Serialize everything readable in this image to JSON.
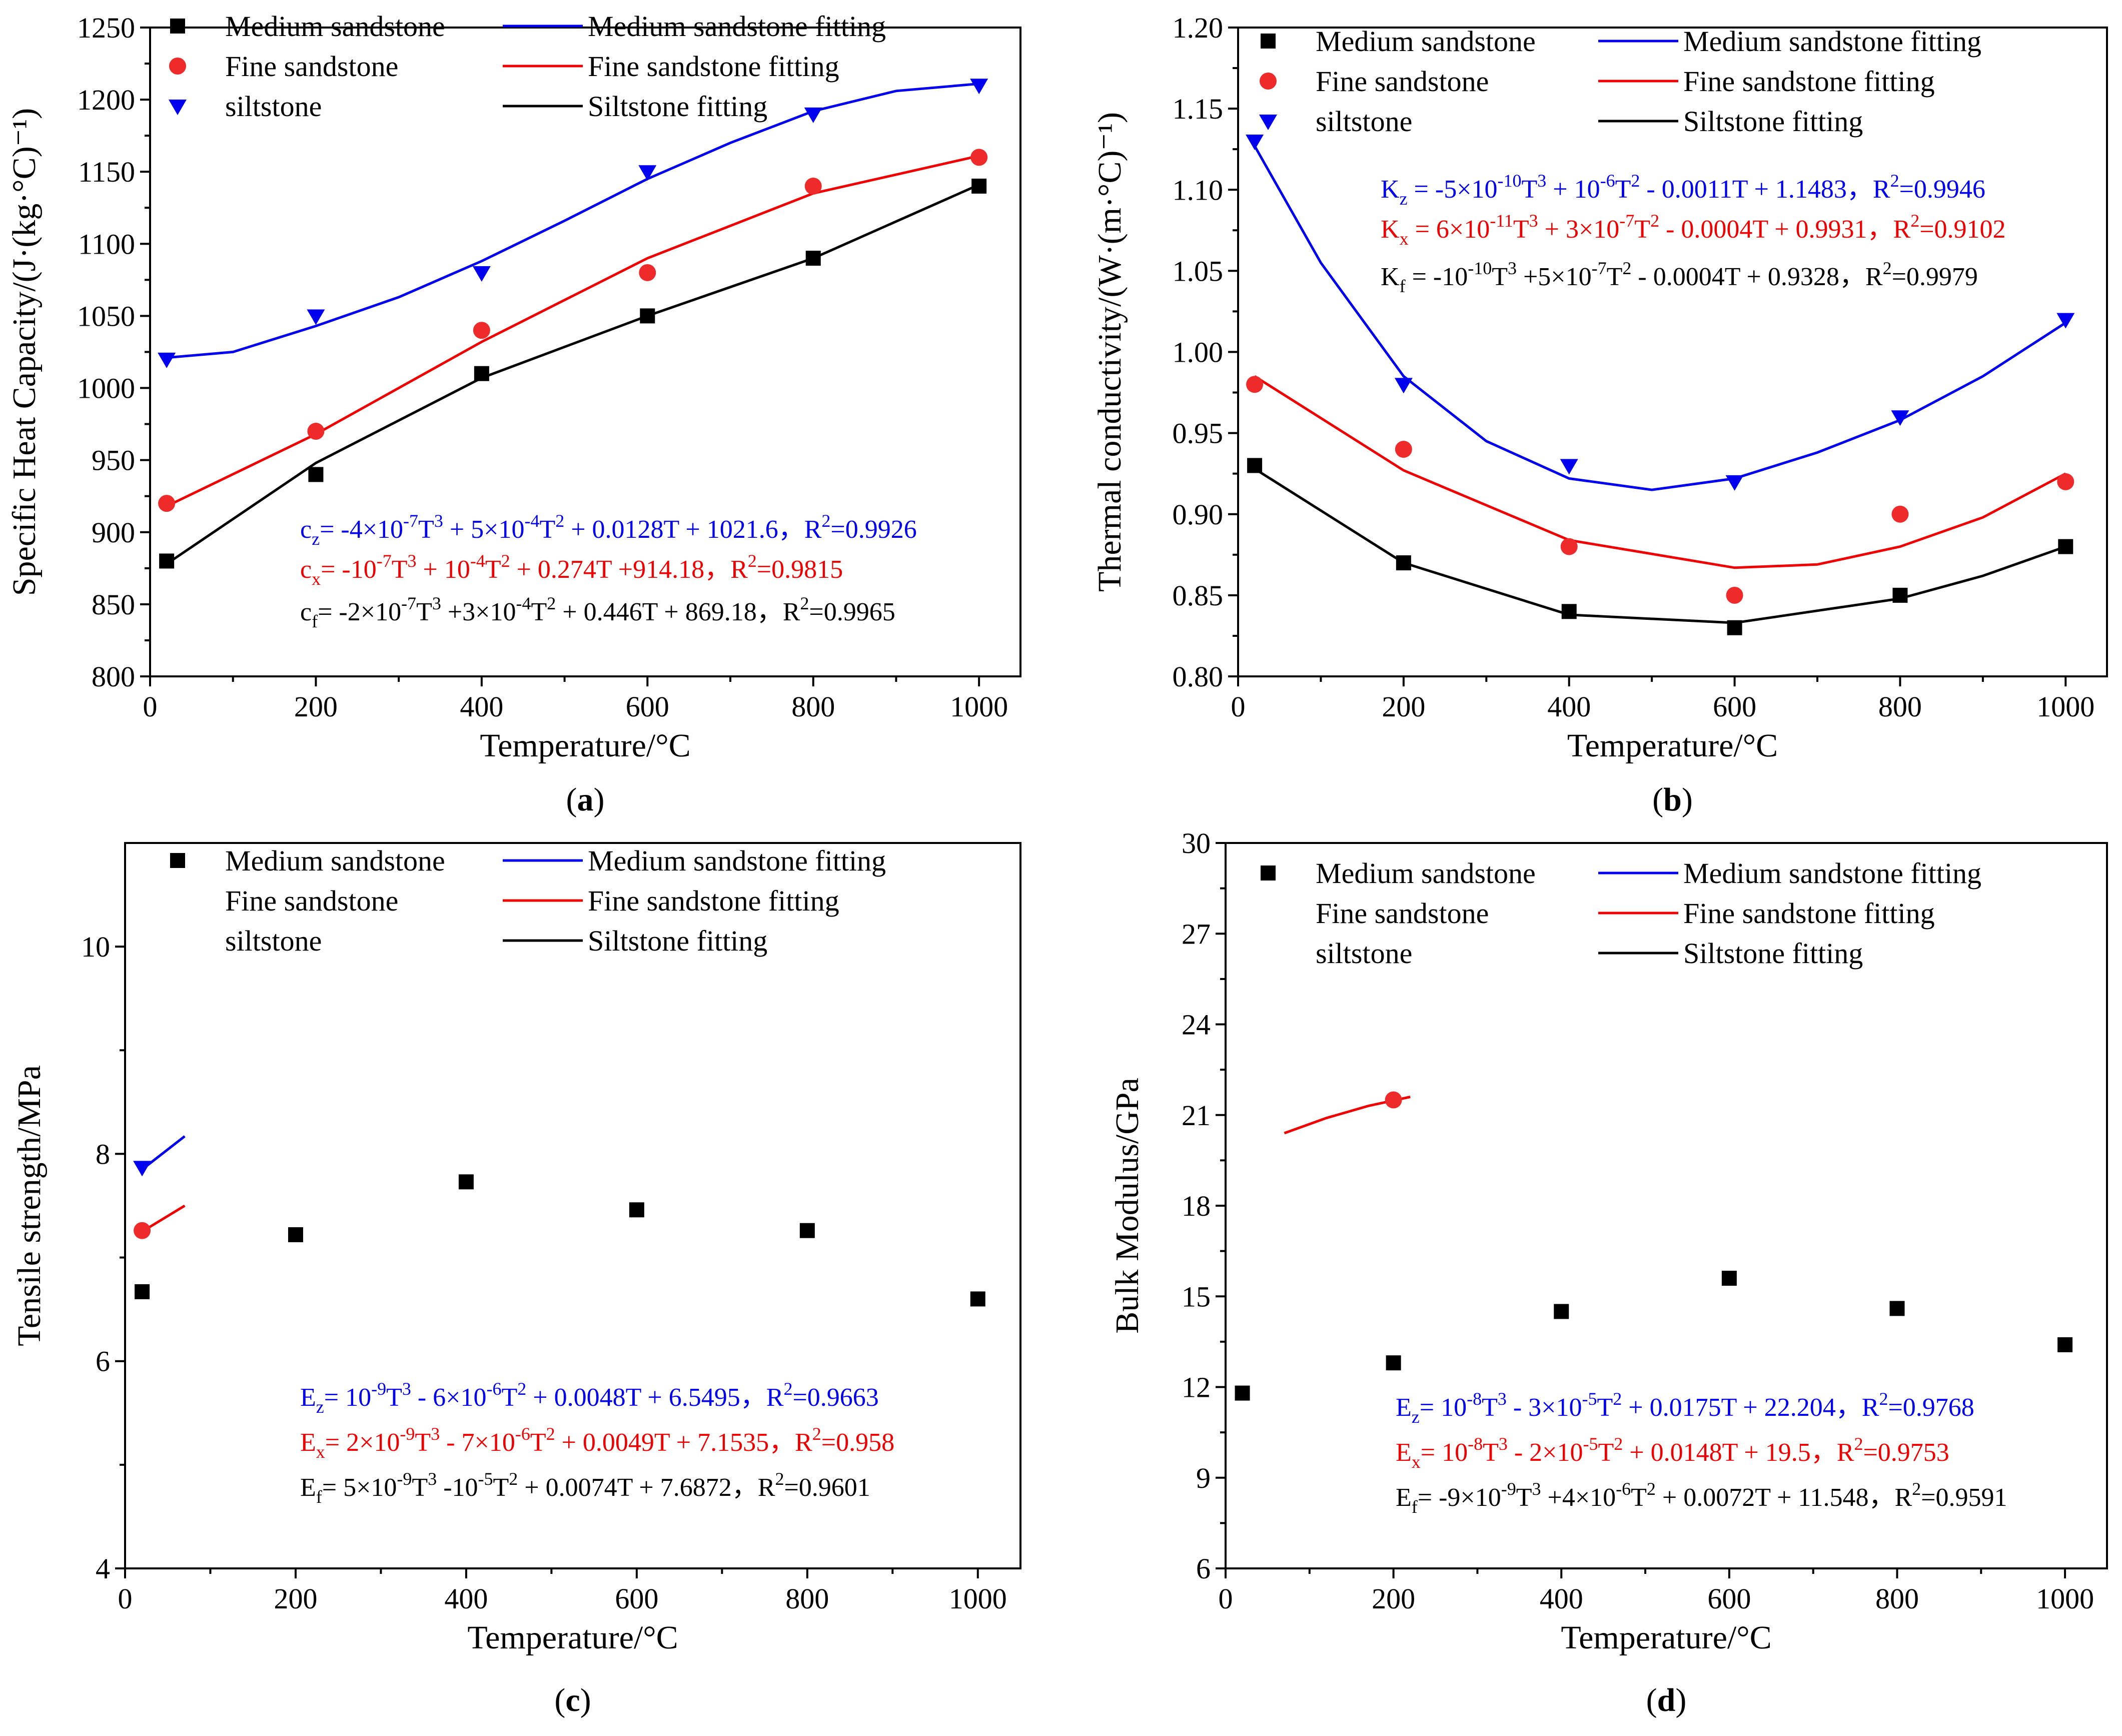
{
  "colors": {
    "medium": "#000000",
    "fine": "#ee2a2a",
    "silt": "#0000ee",
    "blue_fit": "#0000ee",
    "red_fit": "#ee0000",
    "black_fit": "#000000"
  },
  "legend": {
    "medium": "Medium sandstone",
    "fine": "Fine sandstone",
    "silt": "siltstone",
    "medium_fit": "Medium sandstone fitting",
    "fine_fit": "Fine sandstone fitting",
    "silt_fit": "Siltstone fitting"
  },
  "chart_data": [
    {
      "id": "a",
      "type": "scatter",
      "caption_letter": "a",
      "xlabel": "Temperature/°C",
      "ylabel": "Specific Heat Capacity/(J·(kg·°C)⁻¹)",
      "xlim": [
        0,
        1050
      ],
      "ylim": [
        800,
        1250
      ],
      "xticks": [
        0,
        200,
        400,
        600,
        800,
        1000
      ],
      "yticks": [
        800,
        850,
        900,
        950,
        1000,
        1050,
        1100,
        1150,
        1200,
        1250
      ],
      "x": [
        20,
        200,
        400,
        600,
        800,
        1000
      ],
      "series": [
        {
          "key": "medium",
          "name": "Medium sandstone",
          "marker": "square",
          "values": [
            880,
            940,
            1010,
            1050,
            1090,
            1140
          ]
        },
        {
          "key": "fine",
          "name": "Fine sandstone",
          "marker": "circle",
          "values": [
            920,
            970,
            1040,
            1080,
            1140,
            1160
          ]
        },
        {
          "key": "silt",
          "name": "siltstone",
          "marker": "triangle-down",
          "values": [
            1020,
            1050,
            1080,
            1150,
            1190,
            1210
          ]
        }
      ],
      "fits": [
        {
          "key": "silt",
          "color": "blue_fit",
          "range": [
            20,
            1000
          ],
          "points": [
            [
              20,
              1021
            ],
            [
              100,
              1025
            ],
            [
              200,
              1043
            ],
            [
              300,
              1063
            ],
            [
              400,
              1088
            ],
            [
              500,
              1116
            ],
            [
              600,
              1145
            ],
            [
              700,
              1170
            ],
            [
              800,
              1192
            ],
            [
              900,
              1206
            ],
            [
              1000,
              1211
            ]
          ]
        },
        {
          "key": "fine",
          "color": "red_fit",
          "range": [
            20,
            1000
          ],
          "points": [
            [
              20,
              918
            ],
            [
              200,
              968
            ],
            [
              400,
              1032
            ],
            [
              600,
              1090
            ],
            [
              800,
              1135
            ],
            [
              1000,
              1161
            ]
          ]
        },
        {
          "key": "medium",
          "color": "black_fit",
          "range": [
            20,
            1000
          ],
          "points": [
            [
              20,
              878
            ],
            [
              200,
              948
            ],
            [
              400,
              1007
            ],
            [
              600,
              1050
            ],
            [
              800,
              1090
            ],
            [
              1000,
              1141
            ]
          ]
        }
      ],
      "equations": [
        {
          "color": "blue_fit",
          "lhs": "c",
          "sub": "z",
          "body": "= -4×10",
          "e1": "-7",
          "t1": "T",
          "p1": "3",
          "mid": " + 5×10",
          "e2": "-4",
          "t2": "T",
          "p2": "2",
          "tail": " + 0.0128T + 1021.6，R",
          "r2": "2",
          "rval": "=0.9926"
        },
        {
          "color": "red_fit",
          "lhs": "c",
          "sub": "x",
          "body": "= -10",
          "e1": "-7",
          "t1": "T",
          "p1": "3",
          "mid": " + 10",
          "e2": "-4",
          "t2": "T",
          "p2": "2",
          "tail": " + 0.274T +914.18，R",
          "r2": "2",
          "rval": "=0.9815"
        },
        {
          "color": "black_fit",
          "lhs": "c",
          "sub": "f",
          "body": "= -2×10",
          "e1": "-7",
          "t1": "T",
          "p1": "3",
          "mid": " +3×10",
          "e2": "-4",
          "t2": "T",
          "p2": "2",
          "tail": " + 0.446T + 869.18，R",
          "r2": "2",
          "rval": "=0.9965"
        }
      ]
    },
    {
      "id": "b",
      "type": "scatter",
      "caption_letter": "b",
      "xlabel": "Temperature/°C",
      "ylabel": "Thermal conductivity/(W·(m·°C)⁻¹)",
      "xlim": [
        0,
        1050
      ],
      "ylim": [
        0.8,
        1.2
      ],
      "xticks": [
        0,
        200,
        400,
        600,
        800,
        1000
      ],
      "yticks": [
        "0.80",
        "0.85",
        "0.90",
        "0.95",
        "1.00",
        "1.05",
        "1.10",
        "1.15",
        "1.20"
      ],
      "x": [
        20,
        200,
        400,
        600,
        800,
        1000
      ],
      "series": [
        {
          "key": "medium",
          "name": "Medium sandstone",
          "marker": "square",
          "values": [
            0.93,
            0.87,
            0.84,
            0.83,
            0.85,
            0.88
          ]
        },
        {
          "key": "fine",
          "name": "Fine sandstone",
          "marker": "circle",
          "values": [
            0.98,
            0.94,
            0.88,
            0.85,
            0.9,
            0.92
          ]
        },
        {
          "key": "silt",
          "name": "siltstone",
          "marker": "triangle-down",
          "values": [
            1.13,
            0.98,
            0.93,
            0.92,
            0.96,
            1.02
          ]
        }
      ],
      "fits": [
        {
          "key": "silt",
          "color": "blue_fit",
          "points": [
            [
              20,
              1.127
            ],
            [
              100,
              1.055
            ],
            [
              200,
              0.985
            ],
            [
              300,
              0.945
            ],
            [
              400,
              0.922
            ],
            [
              500,
              0.915
            ],
            [
              600,
              0.922
            ],
            [
              700,
              0.938
            ],
            [
              800,
              0.958
            ],
            [
              900,
              0.985
            ],
            [
              1000,
              1.018
            ]
          ]
        },
        {
          "key": "fine",
          "color": "red_fit",
          "points": [
            [
              20,
              0.985
            ],
            [
              200,
              0.927
            ],
            [
              400,
              0.884
            ],
            [
              600,
              0.867
            ],
            [
              700,
              0.869
            ],
            [
              800,
              0.88
            ],
            [
              900,
              0.898
            ],
            [
              1000,
              0.925
            ]
          ]
        },
        {
          "key": "medium",
          "color": "black_fit",
          "points": [
            [
              20,
              0.928
            ],
            [
              200,
              0.87
            ],
            [
              400,
              0.838
            ],
            [
              600,
              0.833
            ],
            [
              800,
              0.848
            ],
            [
              900,
              0.862
            ],
            [
              1000,
              0.88
            ]
          ]
        }
      ],
      "equations": [
        {
          "color": "blue_fit",
          "lhs": "K",
          "sub": "z",
          "body": " = -5×10",
          "e1": "-10",
          "t1": "T",
          "p1": "3",
          "mid": " + 10",
          "e2": "-6",
          "t2": "T",
          "p2": "2",
          "tail": " - 0.0011T + 1.1483，R",
          "r2": "2",
          "rval": "=0.9946"
        },
        {
          "color": "red_fit",
          "lhs": "K",
          "sub": "x",
          "body": " = 6×10",
          "e1": "-11",
          "t1": "T",
          "p1": "3",
          "mid": " + 3×10",
          "e2": "-7",
          "t2": "T",
          "p2": "2",
          "tail": " - 0.0004T + 0.9931，R",
          "r2": "2",
          "rval": "=0.9102"
        },
        {
          "color": "black_fit",
          "lhs": "K",
          "sub": "f",
          "body": " = -10",
          "e1": "-10",
          "t1": "T",
          "p1": "3",
          "mid": " +5×10",
          "e2": "-7",
          "t2": "T",
          "p2": "2",
          "tail": " - 0.0004T + 0.9328，R",
          "r2": "2",
          "rval": "=0.9979"
        }
      ]
    },
    {
      "id": "c",
      "type": "scatter",
      "caption_letter": "c",
      "xlabel": "Temperature/°C",
      "ylabel": "Tensile strength/MPa",
      "xlim": [
        0,
        1050
      ],
      "ylim": [
        4,
        11
      ],
      "xticks": [
        0,
        200,
        400,
        600,
        800,
        1000
      ],
      "yticks": [
        4,
        6,
        8,
        10
      ],
      "x": [
        20,
        200,
        400,
        600,
        800,
        1000
      ],
      "series": [
        {
          "key": "medium",
          "name": "Medium sandstone",
          "marker": "square",
          "values": [
            6.67,
            7.22,
            7.73,
            7.46,
            7.26,
            6.6
          ]
        },
        {
          "key": "fine",
          "name": "Fine sandstone",
          "marker": "circle",
          "values": [
            7.26
          ]
        },
        {
          "key": "silt",
          "name": "siltstone",
          "marker": "triangle-down",
          "values": [
            7.87
          ]
        }
      ],
      "fits": [
        {
          "key": "silt",
          "color": "blue_fit",
          "points": [
            [
              20,
              7.85
            ],
            [
              70,
              8.17
            ]
          ]
        },
        {
          "key": "fine",
          "color": "red_fit",
          "points": [
            [
              20,
              7.25
            ],
            [
              70,
              7.5
            ]
          ]
        }
      ],
      "equations": [
        {
          "color": "blue_fit",
          "lhs": "E",
          "sub": "z",
          "body": "= 10",
          "e1": "-9",
          "t1": "T",
          "p1": "3",
          "mid": " - 6×10",
          "e2": "-6",
          "t2": "T",
          "p2": "2",
          "tail": " + 0.0048T + 6.5495，R",
          "r2": "2",
          "rval": "=0.9663"
        },
        {
          "color": "red_fit",
          "lhs": "E",
          "sub": "x",
          "body": "= 2×10",
          "e1": "-9",
          "t1": "T",
          "p1": "3",
          "mid": " - 7×10",
          "e2": "-6",
          "t2": "T",
          "p2": "2",
          "tail": " + 0.0049T + 7.1535，R",
          "r2": "2",
          "rval": "=0.958"
        },
        {
          "color": "black_fit",
          "lhs": "E",
          "sub": "f",
          "body": "= 5×10",
          "e1": "-9",
          "t1": "T",
          "p1": "3",
          "mid": " -10",
          "e2": "-5",
          "t2": "T",
          "p2": "2",
          "tail": " + 0.0074T + 7.6872，R",
          "r2": "2",
          "rval": "=0.9601"
        }
      ]
    },
    {
      "id": "d",
      "type": "scatter",
      "caption_letter": "d",
      "xlabel": "Temperature/°C",
      "ylabel": "Bulk Modulus/GPa",
      "xlim": [
        0,
        1050
      ],
      "ylim": [
        6,
        30
      ],
      "xticks": [
        0,
        200,
        400,
        600,
        800,
        1000
      ],
      "yticks": [
        6,
        9,
        12,
        15,
        18,
        21,
        24,
        27,
        30
      ],
      "x": [
        20,
        200,
        400,
        600,
        800,
        1000
      ],
      "series": [
        {
          "key": "medium",
          "name": "Medium sandstone",
          "marker": "square",
          "values": [
            11.8,
            12.8,
            14.5,
            15.6,
            14.6,
            13.4
          ]
        },
        {
          "key": "fine",
          "name": "Fine sandstone",
          "marker": "circle",
          "x": [
            200
          ],
          "values": [
            21.5
          ]
        },
        {
          "key": "silt",
          "name": "siltstone",
          "marker": "none",
          "values": []
        }
      ],
      "fits": [
        {
          "key": "fine",
          "color": "red_fit",
          "points": [
            [
              70,
              20.4
            ],
            [
              120,
              20.9
            ],
            [
              170,
              21.3
            ],
            [
              220,
              21.6
            ]
          ]
        }
      ],
      "equations": [
        {
          "color": "blue_fit",
          "lhs": "E",
          "sub": "z",
          "body": "= 10",
          "e1": "-8",
          "t1": "T",
          "p1": "3",
          "mid": " - 3×10",
          "e2": "-5",
          "t2": "T",
          "p2": "2",
          "tail": " + 0.0175T + 22.204，R",
          "r2": "2",
          "rval": "=0.9768"
        },
        {
          "color": "red_fit",
          "lhs": "E",
          "sub": "x",
          "body": "= 10",
          "e1": "-8",
          "t1": "T",
          "p1": "3",
          "mid": " - 2×10",
          "e2": "-5",
          "t2": "T",
          "p2": "2",
          "tail": " + 0.0148T + 19.5，R",
          "r2": "2",
          "rval": "=0.9753"
        },
        {
          "color": "black_fit",
          "lhs": "E",
          "sub": "f",
          "body": "= -9×10",
          "e1": "-9",
          "t1": "T",
          "p1": "3",
          "mid": " +4×10",
          "e2": "-6",
          "t2": "T",
          "p2": "2",
          "tail": " + 0.0072T + 11.548，R",
          "r2": "2",
          "rval": "=0.9591"
        }
      ]
    }
  ]
}
